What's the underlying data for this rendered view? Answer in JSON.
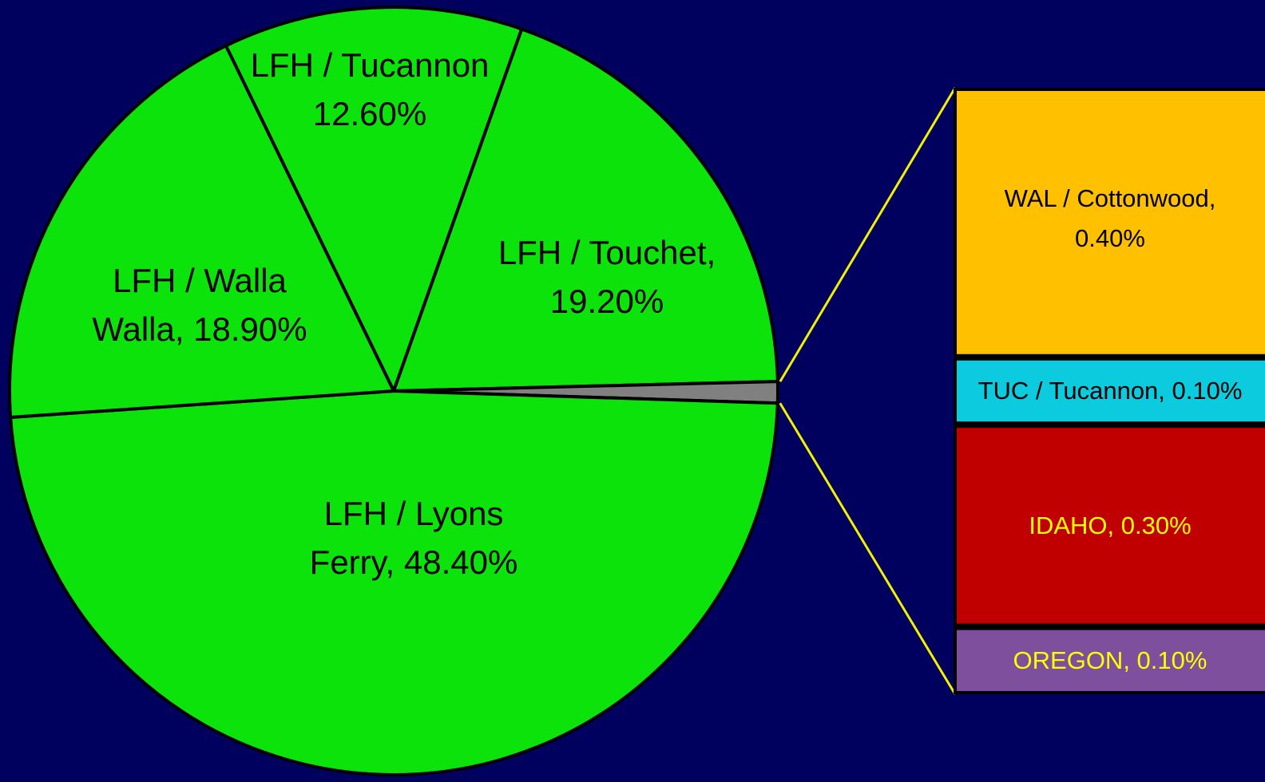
{
  "chart_data": {
    "type": "pie",
    "pie": {
      "values": [
        12.6,
        19.2,
        0.9,
        48.4,
        18.9
      ],
      "value_labels": [
        "LFH / Tucannon 12.60%",
        "LFH / Touchet, 19.20%",
        null,
        "LFH / Lyons Ferry, 48.40%",
        "LFH / Walla Walla, 18.90%"
      ],
      "colors": [
        "#0be30b",
        "#0be30b",
        "#808080",
        "#0be30b",
        "#0be30b"
      ]
    },
    "bar": {
      "values": [
        0.4,
        0.1,
        0.3,
        0.1
      ],
      "value_labels": [
        "WAL / Cottonwood, 0.40%",
        "TUC / Tucannon, 0.10%",
        "IDAHO, 0.30%",
        "OREGON, 0.10%"
      ],
      "colors": [
        "#ffc000",
        "#0ccbdf",
        "#c00000",
        "#7d4f9c"
      ],
      "label_colors": [
        "#000000",
        "#000000",
        "#ffff00",
        "#ffff00"
      ]
    },
    "connector_color": "#f2f200"
  }
}
